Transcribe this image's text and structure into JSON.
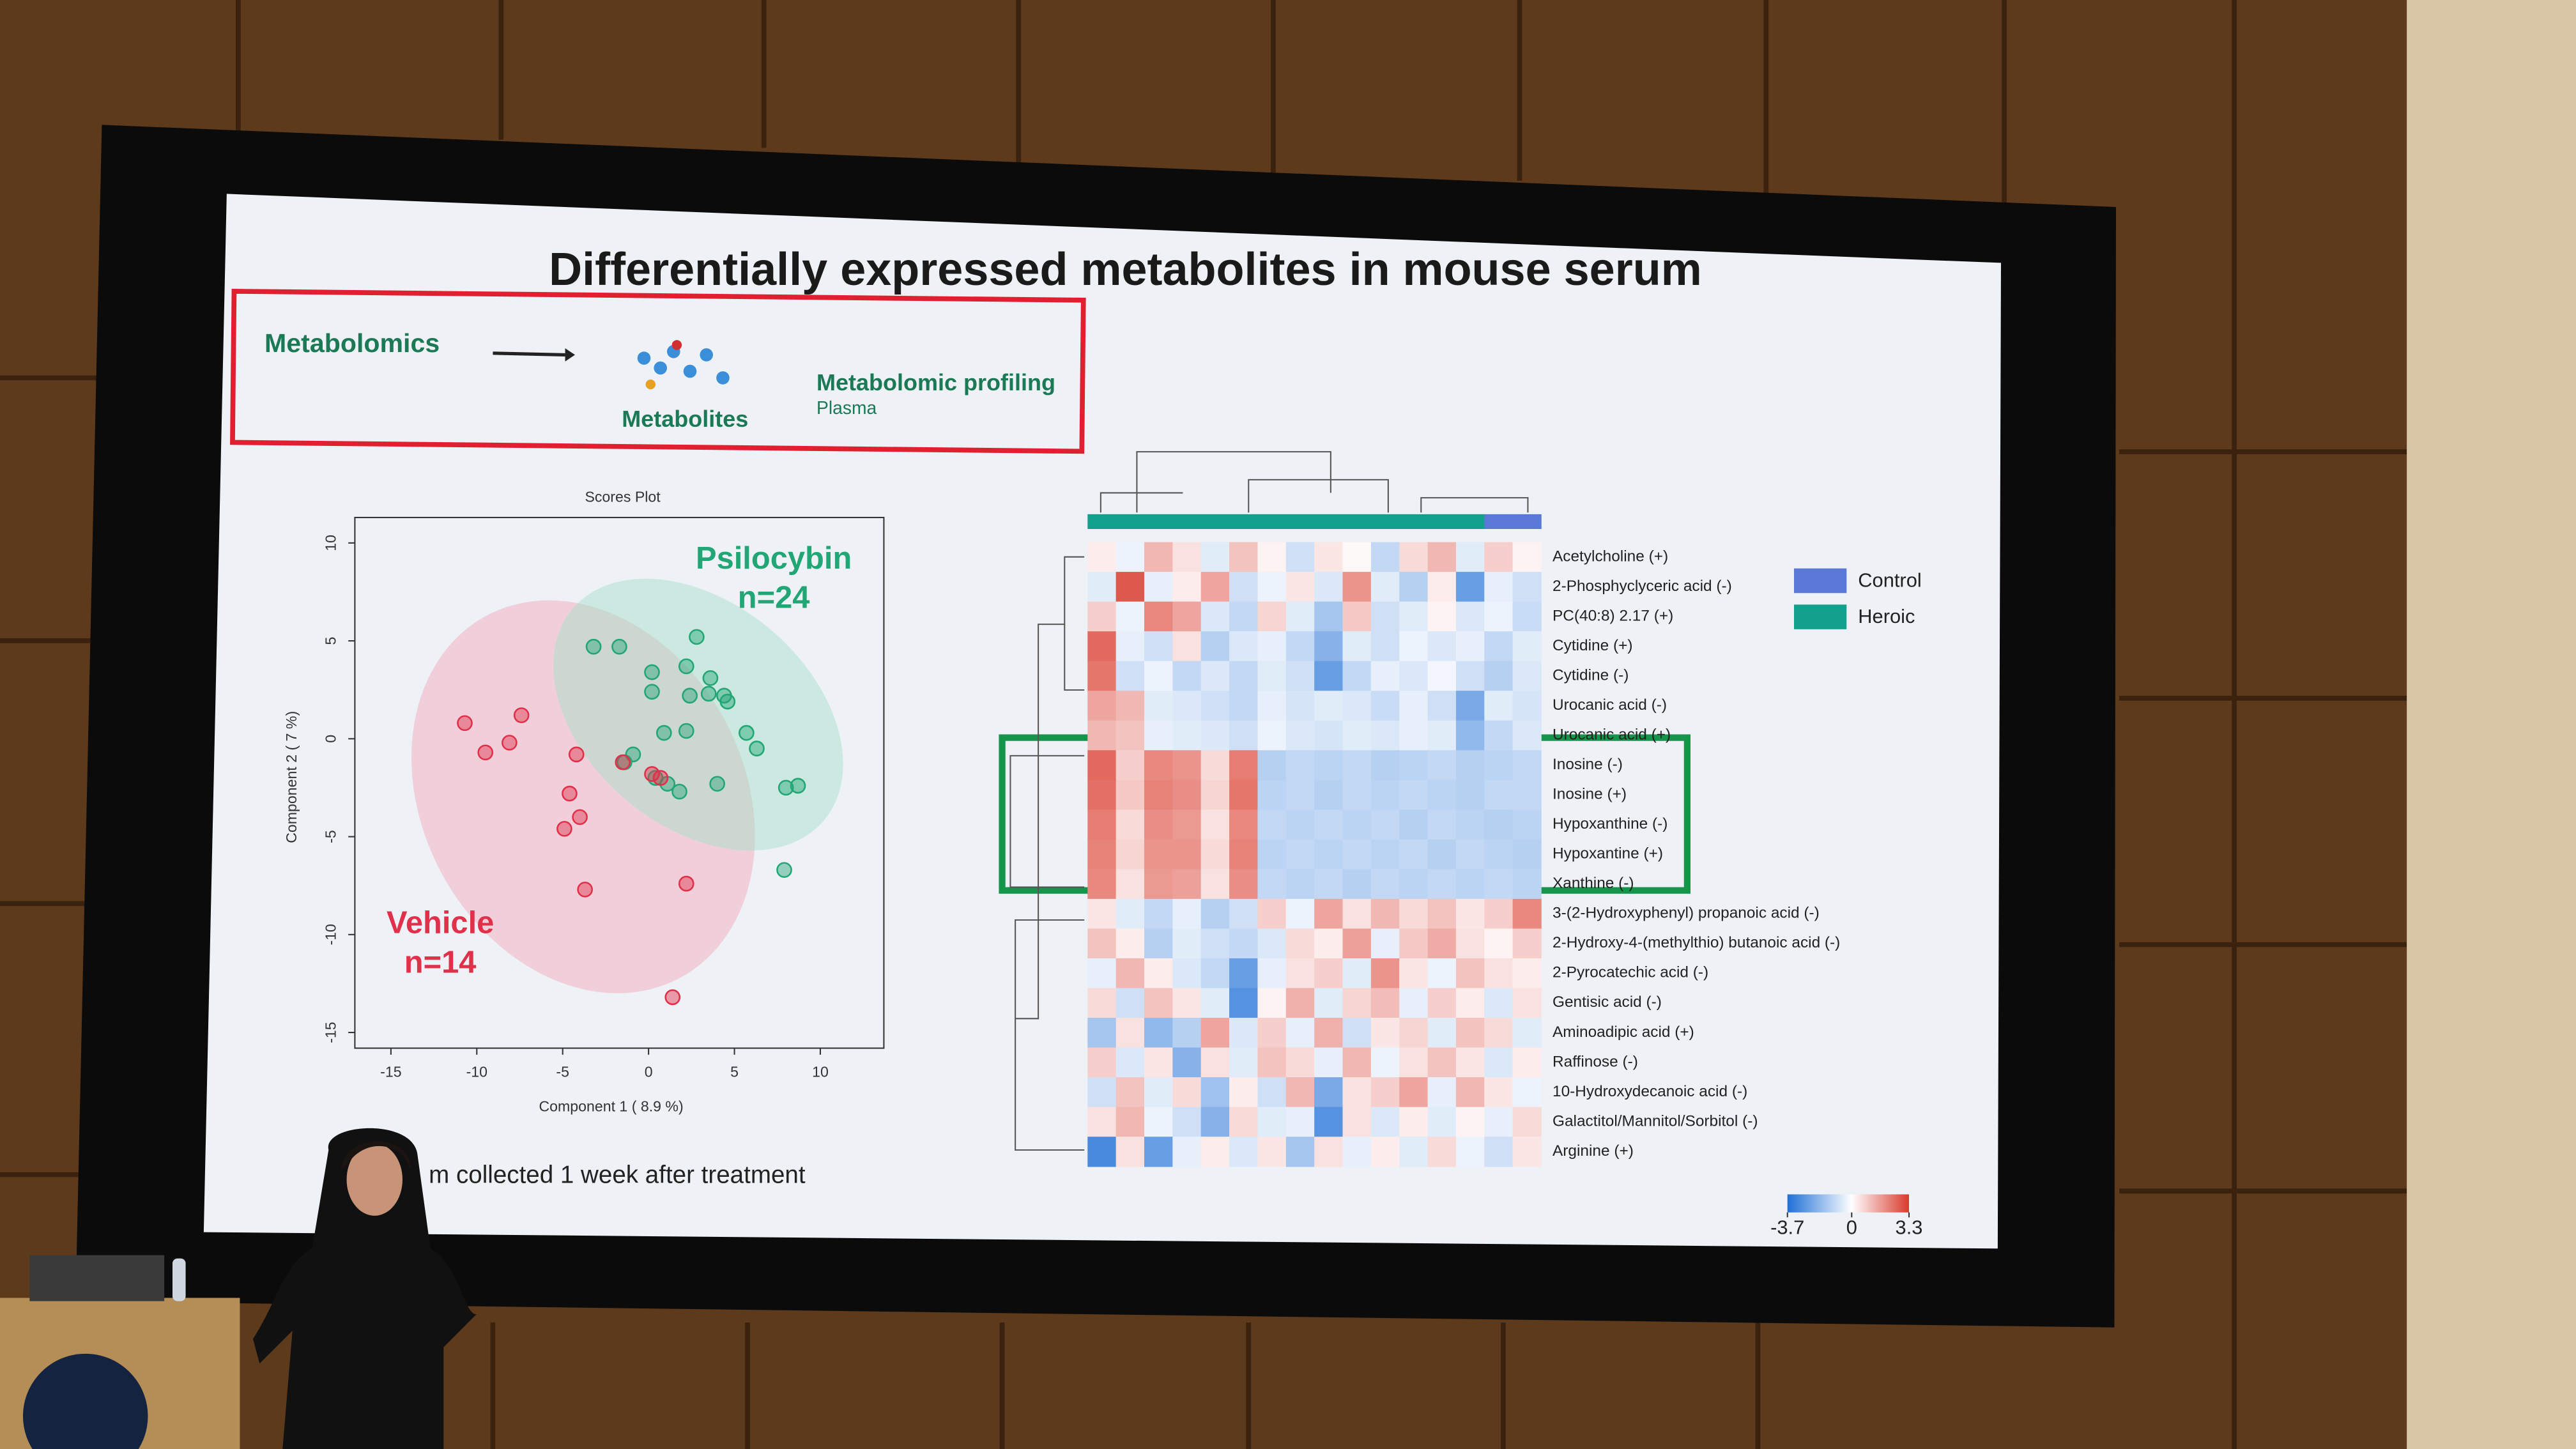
{
  "slide": {
    "title": "Differentially expressed metabolites in mouse serum",
    "workflow": {
      "step1": "Metabolomics",
      "step2": "Metabolites",
      "step3": "Metabolomic profiling",
      "sample": "Plasma"
    },
    "caption": "m collected 1 week after treatment"
  },
  "chart_data": [
    {
      "type": "scatter",
      "title": "Scores Plot",
      "x_label": "Component 1 ( 8.9 %)",
      "y_label": "Component 2 ( 7 %)",
      "xlim": [
        -17.1,
        13.7
      ],
      "ylim": [
        -15.8,
        11.3
      ],
      "xticks": [
        -15,
        -10,
        -5,
        0,
        5,
        10
      ],
      "yticks": [
        -15,
        -10,
        -5,
        0,
        5,
        10
      ],
      "annotations": [
        "n=24",
        "n=14"
      ],
      "series": [
        {
          "name": "Psilocybin",
          "color": "#23a676",
          "x": [
            -3.2,
            -1.7,
            2.8,
            0.2,
            2.2,
            3.6,
            0.2,
            2.4,
            3.5,
            4.4,
            4.6,
            0.9,
            2.2,
            5.7,
            6.3,
            -0.9,
            4.0,
            1.8,
            8.0,
            8.7,
            7.9,
            0.4,
            1.1,
            -1.4
          ],
          "y": [
            4.7,
            4.7,
            5.2,
            3.4,
            3.7,
            3.1,
            2.4,
            2.2,
            2.3,
            2.2,
            1.9,
            0.3,
            0.4,
            0.3,
            -0.5,
            -0.8,
            -2.3,
            -2.7,
            -2.5,
            -2.4,
            -6.7,
            -2.0,
            -2.3,
            -1.2
          ]
        },
        {
          "name": "Vehicle",
          "color": "#e0304a",
          "x": [
            -10.7,
            -9.5,
            -8.1,
            -7.4,
            -4.2,
            -4.6,
            -4.0,
            -4.9,
            -3.7,
            -1.5,
            0.7,
            2.2,
            1.4,
            0.2
          ],
          "y": [
            0.8,
            -0.7,
            -0.2,
            1.2,
            -0.8,
            -2.8,
            -4.0,
            -4.6,
            -7.7,
            -1.2,
            -2.0,
            -7.4,
            -13.2,
            -1.8
          ]
        }
      ]
    },
    {
      "type": "heatmap",
      "rows": [
        "Acetylcholine (+)",
        "2-Phosphyclyceric acid (-)",
        "PC(40:8) 2.17 (+)",
        "Cytidine (+)",
        "Cytidine (-)",
        "Urocanic acid (-)",
        "Urocanic acid (+)",
        "Inosine (-)",
        "Inosine (+)",
        "Hypoxanthine (-)",
        "Hypoxantine (+)",
        "Xanthine (-)",
        "3-(2-Hydroxyphenyl) propanoic acid (-)",
        "2-Hydroxy-4-(methylthio) butanoic acid (-)",
        "2-Pyrocatechic acid (-)",
        "Gentisic acid (-)",
        "Aminoadipic acid (+)",
        "Raffinose (-)",
        "10-Hydroxydecanoic acid (-)",
        "Galactitol/Mannitol/Sorbitol (-)",
        "Arginine (+)"
      ],
      "groups": [
        {
          "name": "Control",
          "color": "#5a78d6"
        },
        {
          "name": "Heroic",
          "color": "#12a08c"
        }
      ],
      "column_groups": [
        1,
        1,
        1,
        1,
        1,
        1,
        1,
        1,
        1,
        1,
        1,
        1,
        1,
        1,
        0,
        0
      ],
      "colorbar": {
        "min": -3.7,
        "max": 3.3,
        "ticks": [
          -3.7,
          0,
          3.3
        ],
        "low_color": "#1f6fd6",
        "high_color": "#d93a2c"
      },
      "values": [
        [
          0.3,
          -0.3,
          1.2,
          0.5,
          -0.5,
          1.0,
          0.2,
          -0.8,
          0.4,
          0.1,
          -1.0,
          0.6,
          1.2,
          -0.5,
          0.8,
          0.2
        ],
        [
          -0.5,
          2.8,
          -0.4,
          0.3,
          1.5,
          -0.8,
          -0.3,
          0.4,
          -0.6,
          1.8,
          -0.5,
          -1.2,
          0.3,
          -2.5,
          -0.4,
          -0.8
        ],
        [
          0.8,
          -0.3,
          2.0,
          1.5,
          -0.6,
          -1.0,
          0.7,
          -0.5,
          -1.5,
          0.9,
          -0.8,
          -0.5,
          0.2,
          -0.6,
          -0.3,
          -0.9
        ],
        [
          2.5,
          -0.4,
          -0.8,
          0.5,
          -1.2,
          -0.6,
          -0.4,
          -1.0,
          -2.0,
          -0.5,
          -0.8,
          -0.3,
          -0.6,
          -0.4,
          -1.0,
          -0.5
        ],
        [
          2.3,
          -0.8,
          -0.3,
          -1.0,
          -0.6,
          -1.0,
          -0.5,
          -0.8,
          -2.5,
          -1.0,
          -0.4,
          -0.6,
          -0.2,
          -0.8,
          -1.2,
          -0.6
        ],
        [
          1.5,
          1.2,
          -0.5,
          -0.6,
          -0.8,
          -1.0,
          -0.4,
          -0.7,
          -0.5,
          -0.6,
          -0.9,
          -0.4,
          -0.8,
          -2.2,
          -0.5,
          -0.7
        ],
        [
          1.2,
          1.0,
          -0.4,
          -0.5,
          -0.6,
          -0.8,
          -0.3,
          -0.6,
          -0.7,
          -0.5,
          -0.6,
          -0.4,
          -0.5,
          -1.8,
          -1.0,
          -0.6
        ],
        [
          2.5,
          0.8,
          2.0,
          1.8,
          0.6,
          2.2,
          -1.2,
          -1.0,
          -1.1,
          -1.0,
          -1.2,
          -1.1,
          -1.0,
          -1.2,
          -1.1,
          -1.0
        ],
        [
          2.4,
          0.9,
          2.1,
          1.9,
          0.7,
          2.3,
          -1.1,
          -1.0,
          -1.2,
          -1.0,
          -1.1,
          -1.0,
          -1.1,
          -1.2,
          -1.0,
          -1.0
        ],
        [
          2.2,
          0.6,
          1.9,
          1.7,
          0.5,
          2.0,
          -1.0,
          -1.1,
          -1.0,
          -1.1,
          -1.0,
          -1.2,
          -1.0,
          -1.1,
          -1.2,
          -1.1
        ],
        [
          2.1,
          0.7,
          1.8,
          1.8,
          0.6,
          2.1,
          -1.1,
          -1.0,
          -1.1,
          -1.0,
          -1.1,
          -1.0,
          -1.2,
          -1.0,
          -1.1,
          -1.2
        ],
        [
          2.0,
          0.5,
          1.7,
          1.6,
          0.5,
          1.9,
          -1.0,
          -1.1,
          -1.0,
          -1.2,
          -1.0,
          -1.1,
          -1.0,
          -1.1,
          -1.0,
          -1.1
        ],
        [
          0.4,
          -0.5,
          -1.0,
          -0.4,
          -1.2,
          -0.8,
          0.8,
          -0.3,
          1.5,
          0.5,
          1.2,
          0.6,
          1.0,
          0.4,
          0.8,
          2.0
        ],
        [
          1.0,
          0.3,
          -1.2,
          -0.5,
          -0.8,
          -1.0,
          -0.6,
          0.6,
          0.3,
          1.6,
          -0.4,
          0.9,
          1.4,
          0.5,
          0.2,
          0.8
        ],
        [
          -0.4,
          1.2,
          0.3,
          -0.6,
          -1.0,
          -2.5,
          -0.4,
          0.5,
          0.8,
          -0.5,
          1.8,
          0.4,
          -0.3,
          1.0,
          0.5,
          0.3
        ],
        [
          0.6,
          -0.8,
          1.0,
          0.4,
          -0.5,
          -2.8,
          0.2,
          1.3,
          -0.5,
          0.7,
          1.1,
          -0.4,
          0.8,
          0.3,
          -0.6,
          0.5
        ],
        [
          -1.5,
          0.5,
          -1.8,
          -1.2,
          1.5,
          -0.6,
          0.8,
          -0.4,
          1.3,
          -0.8,
          0.4,
          0.7,
          -0.5,
          1.0,
          0.6,
          -0.5
        ],
        [
          0.8,
          -0.6,
          0.4,
          -2.0,
          0.5,
          -0.5,
          1.0,
          0.6,
          -0.4,
          1.2,
          -0.3,
          0.5,
          1.0,
          0.4,
          -0.6,
          0.3
        ],
        [
          -0.8,
          1.0,
          -0.5,
          0.6,
          -1.6,
          0.3,
          -0.8,
          1.2,
          -2.2,
          0.5,
          0.8,
          1.5,
          -0.4,
          1.2,
          0.4,
          -0.3
        ],
        [
          0.5,
          1.2,
          -0.3,
          -0.8,
          -2.0,
          0.6,
          -0.5,
          -0.4,
          -2.8,
          0.5,
          -0.6,
          0.3,
          -0.5,
          0.2,
          -0.4,
          0.6
        ],
        [
          -3.0,
          0.5,
          -2.5,
          -0.4,
          0.3,
          -0.6,
          0.4,
          -1.5,
          0.5,
          -0.4,
          0.3,
          -0.5,
          0.6,
          -0.3,
          -0.8,
          0.4
        ]
      ]
    }
  ]
}
